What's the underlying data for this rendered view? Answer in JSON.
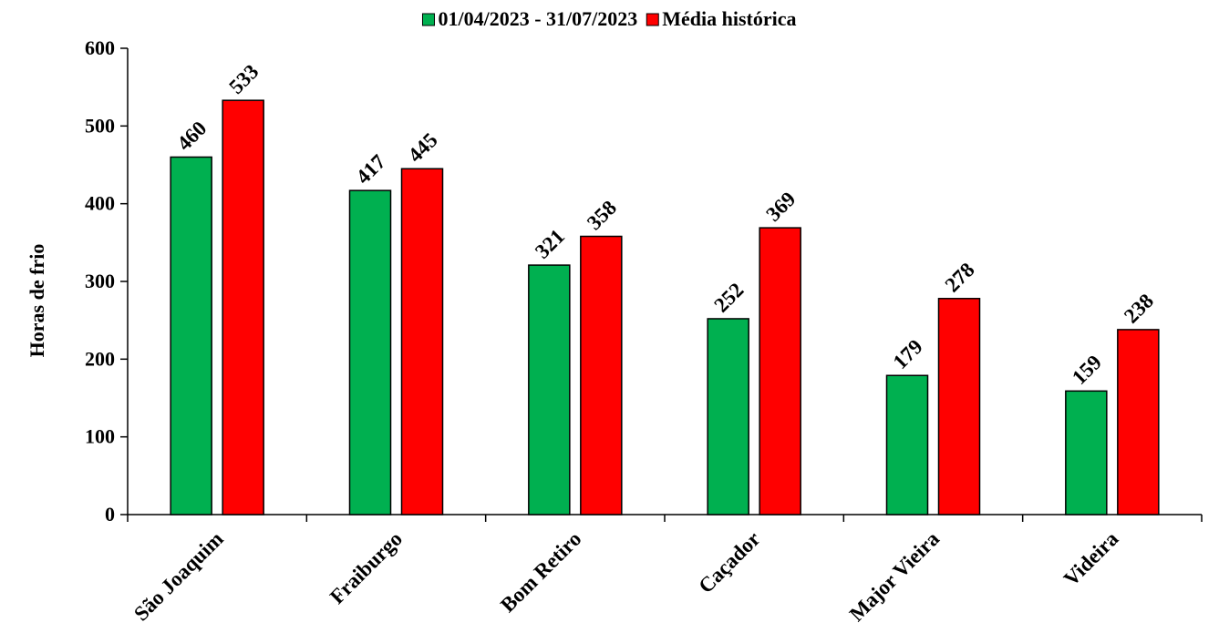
{
  "chart_data": {
    "type": "bar",
    "categories": [
      "São Joaquim",
      "Fraiburgo",
      "Bom Retiro",
      "Caçador",
      "Major Vieira",
      "Videira"
    ],
    "series": [
      {
        "name": "01/04/2023 - 31/07/2023",
        "color": "#00b050",
        "values": [
          460,
          417,
          321,
          252,
          179,
          159
        ]
      },
      {
        "name": "Média histórica",
        "color": "#ff0000",
        "values": [
          533,
          445,
          358,
          369,
          278,
          238
        ]
      }
    ],
    "ylabel": "Horas de frio",
    "ylim": [
      0,
      600
    ],
    "yticks": [
      0,
      100,
      200,
      300,
      400,
      500,
      600
    ],
    "legend_position": "top-center",
    "grid": false
  }
}
